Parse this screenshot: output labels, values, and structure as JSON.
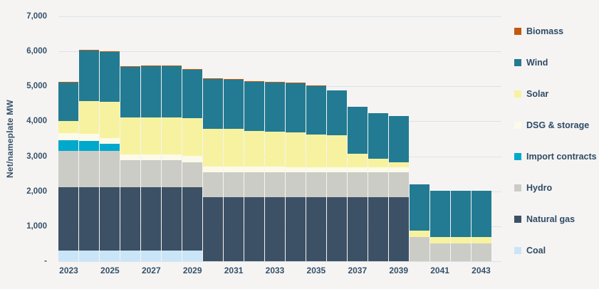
{
  "figure": {
    "background": "#F5F4F2",
    "text_color": "#35506B",
    "gridline_color": "#DCE3EC"
  },
  "chart_data": {
    "type": "bar",
    "stacked": true,
    "ylabel": "Net/nameplate MW",
    "xlabel": "",
    "ylim": [
      0,
      7000
    ],
    "grid": "horizontal lines every 1000",
    "legend_position": "right",
    "yticks": [
      {
        "value": 7000,
        "label": "7,000"
      },
      {
        "value": 6000,
        "label": "6,000"
      },
      {
        "value": 5000,
        "label": "5,000"
      },
      {
        "value": 4000,
        "label": "4,000"
      },
      {
        "value": 3000,
        "label": "3,000"
      },
      {
        "value": 2000,
        "label": "2,000"
      },
      {
        "value": 1000,
        "label": "1,000"
      },
      {
        "value": 0,
        "label": "-"
      }
    ],
    "categories": [
      "2023",
      "2024",
      "2025",
      "2026",
      "2027",
      "2028",
      "2029",
      "2030",
      "2031",
      "2032",
      "2033",
      "2034",
      "2035",
      "2036",
      "2037",
      "2038",
      "2039",
      "2040",
      "2041",
      "2042",
      "2043"
    ],
    "x_tick_labels": [
      "2023",
      "2025",
      "2027",
      "2029",
      "2031",
      "2033",
      "2035",
      "2037",
      "2039",
      "2041",
      "2043"
    ],
    "series": [
      {
        "name": "Coal",
        "color": "#CBE5F8",
        "values": [
          300,
          300,
          300,
          300,
          300,
          300,
          300,
          0,
          0,
          0,
          0,
          0,
          0,
          0,
          0,
          0,
          0,
          0,
          0,
          0,
          0
        ]
      },
      {
        "name": "Natural gas",
        "color": "#3D5166",
        "values": [
          1820,
          1820,
          1820,
          1820,
          1820,
          1820,
          1820,
          1835,
          1835,
          1835,
          1835,
          1835,
          1835,
          1835,
          1835,
          1835,
          1835,
          0,
          0,
          0,
          0
        ]
      },
      {
        "name": "Hydro",
        "color": "#CCCCC6",
        "values": [
          1030,
          1030,
          1030,
          770,
          770,
          770,
          700,
          700,
          700,
          700,
          700,
          700,
          700,
          700,
          700,
          700,
          700,
          685,
          515,
          515,
          515
        ]
      },
      {
        "name": "Import contracts",
        "color": "#00A9CC",
        "values": [
          320,
          295,
          205,
          0,
          0,
          0,
          0,
          0,
          0,
          0,
          0,
          0,
          0,
          0,
          0,
          0,
          0,
          0,
          0,
          0,
          0
        ]
      },
      {
        "name": "DSG & storage",
        "color": "#FCFBE9",
        "values": [
          200,
          190,
          170,
          170,
          170,
          170,
          185,
          165,
          165,
          165,
          165,
          160,
          160,
          160,
          150,
          150,
          150,
          0,
          0,
          0,
          0
        ]
      },
      {
        "name": "Solar",
        "color": "#F7F2A0",
        "values": [
          330,
          940,
          1040,
          1050,
          1050,
          1050,
          1080,
          1095,
          1085,
          1030,
          1000,
          980,
          935,
          915,
          395,
          245,
          150,
          185,
          170,
          170,
          170
        ]
      },
      {
        "name": "Wind",
        "color": "#227B92",
        "values": [
          1100,
          1440,
          1410,
          1450,
          1460,
          1470,
          1390,
          1420,
          1400,
          1405,
          1410,
          1420,
          1385,
          1275,
          1330,
          1310,
          1320,
          1320,
          1330,
          1330,
          1330
        ]
      },
      {
        "name": "Biomass",
        "color": "#C25910",
        "values": [
          30,
          30,
          30,
          20,
          20,
          20,
          15,
          15,
          15,
          15,
          15,
          10,
          10,
          5,
          5,
          0,
          0,
          0,
          0,
          0,
          0
        ]
      }
    ],
    "legend_order_top_to_bottom": [
      "Biomass",
      "Wind",
      "Solar",
      "DSG & storage",
      "Import contracts",
      "Hydro",
      "Natural gas",
      "Coal"
    ]
  }
}
